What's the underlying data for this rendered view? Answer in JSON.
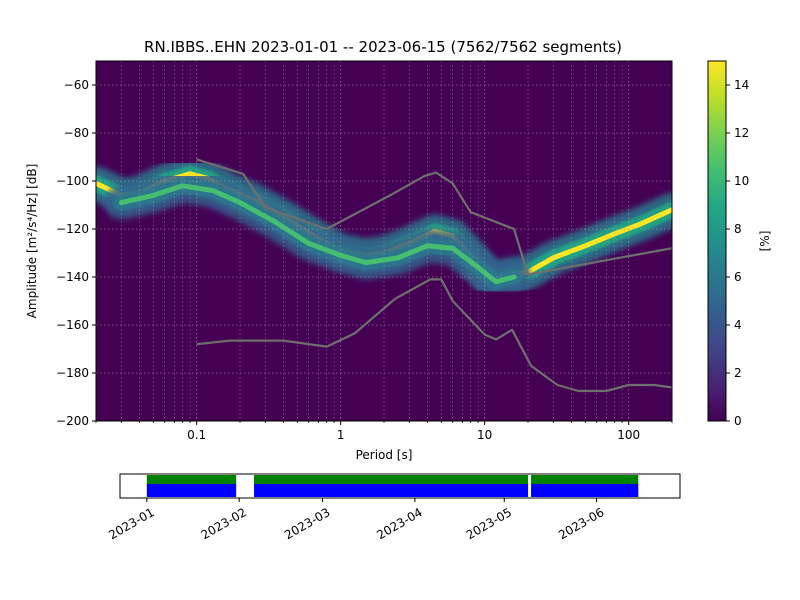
{
  "chart_data": {
    "type": "heatmap",
    "title": "RN.IBBS..EHN   2023-01-01 -- 2023-06-15  (7562/7562 segments)",
    "xlabel": "Period [s]",
    "ylabel": "Amplitude [m²/s⁴/Hz] [dB]",
    "x_scale": "log",
    "xlim": [
      0.02,
      200
    ],
    "ylim": [
      -200,
      -50
    ],
    "x_ticks": [
      {
        "value": 0.1,
        "label": "0.1"
      },
      {
        "value": 1,
        "label": "1"
      },
      {
        "value": 10,
        "label": "10"
      },
      {
        "value": 100,
        "label": "100"
      }
    ],
    "y_ticks": [
      {
        "value": -60,
        "label": "−60"
      },
      {
        "value": -80,
        "label": "−80"
      },
      {
        "value": -100,
        "label": "−100"
      },
      {
        "value": -120,
        "label": "−120"
      },
      {
        "value": -140,
        "label": "−140"
      },
      {
        "value": -160,
        "label": "−160"
      },
      {
        "value": -180,
        "label": "−180"
      },
      {
        "value": -200,
        "label": "−200"
      }
    ],
    "grid": true,
    "colormap": "viridis",
    "colorbar": {
      "label": "[%]",
      "range": [
        0,
        15
      ],
      "ticks": [
        {
          "value": 0,
          "label": "0"
        },
        {
          "value": 2,
          "label": "2"
        },
        {
          "value": 4,
          "label": "4"
        },
        {
          "value": 6,
          "label": "6"
        },
        {
          "value": 8,
          "label": "8"
        },
        {
          "value": 10,
          "label": "10"
        },
        {
          "value": 12,
          "label": "12"
        },
        {
          "value": 14,
          "label": "14"
        }
      ]
    },
    "density_ridges": [
      {
        "peak": 15,
        "points": [
          [
            0.02,
            -101
          ],
          [
            0.03,
            -106
          ],
          [
            0.04,
            -105
          ],
          [
            0.06,
            -100
          ],
          [
            0.09,
            -97
          ],
          [
            0.12,
            -99
          ],
          [
            0.16,
            -103
          ],
          [
            0.25,
            -108
          ],
          [
            0.4,
            -115
          ],
          [
            0.7,
            -124
          ],
          [
            1,
            -129
          ],
          [
            1.5,
            -131
          ],
          [
            2,
            -130
          ],
          [
            3,
            -126
          ],
          [
            4.5,
            -121
          ],
          [
            6,
            -123
          ],
          [
            8,
            -131
          ],
          [
            11,
            -141
          ],
          [
            15,
            -139
          ],
          [
            20,
            -138
          ],
          [
            30,
            -132
          ],
          [
            50,
            -127
          ],
          [
            80,
            -122
          ],
          [
            120,
            -118
          ],
          [
            200,
            -112
          ]
        ]
      },
      {
        "peak": 11,
        "points": [
          [
            0.03,
            -109
          ],
          [
            0.05,
            -106
          ],
          [
            0.08,
            -102
          ],
          [
            0.13,
            -104
          ],
          [
            0.2,
            -109
          ],
          [
            0.35,
            -117
          ],
          [
            0.6,
            -126
          ],
          [
            1,
            -131
          ],
          [
            1.5,
            -134
          ],
          [
            2.5,
            -132
          ],
          [
            4,
            -127
          ],
          [
            6,
            -128
          ],
          [
            9,
            -136
          ],
          [
            12,
            -142
          ],
          [
            16,
            -140
          ]
        ]
      }
    ],
    "model_curves": [
      {
        "points": [
          [
            0.1,
            -91
          ],
          [
            0.21,
            -97
          ],
          [
            0.3,
            -111
          ],
          [
            0.8,
            -120
          ],
          [
            2.2,
            -106
          ],
          [
            3.8,
            -98
          ],
          [
            4.6,
            -96.5
          ],
          [
            6,
            -101
          ],
          [
            8,
            -113
          ],
          [
            16,
            -120
          ],
          [
            20,
            -139
          ],
          [
            200,
            -128
          ]
        ]
      },
      {
        "points": [
          [
            0.1,
            -168
          ],
          [
            0.17,
            -166.5
          ],
          [
            0.4,
            -166.5
          ],
          [
            0.8,
            -169
          ],
          [
            1.25,
            -163.5
          ],
          [
            2.4,
            -149
          ],
          [
            4.2,
            -141
          ],
          [
            5,
            -141
          ],
          [
            6,
            -150
          ],
          [
            10,
            -164
          ],
          [
            12,
            -166
          ],
          [
            15.5,
            -162
          ],
          [
            21,
            -177
          ],
          [
            32,
            -185
          ],
          [
            45,
            -187.5
          ],
          [
            70,
            -187.5
          ],
          [
            100,
            -185
          ],
          [
            150,
            -185
          ],
          [
            200,
            -186
          ]
        ]
      }
    ],
    "timeline": {
      "date_ticks": [
        "2023-01",
        "2023-02",
        "2023-03",
        "2023-04",
        "2023-05",
        "2023-06"
      ],
      "range": [
        "2022-12-23",
        "2023-06-29"
      ],
      "coverage": [
        {
          "start": "2023-01-01",
          "end": "2023-01-31"
        },
        {
          "start": "2023-02-06",
          "end": "2023-05-09"
        },
        {
          "start": "2023-05-10",
          "end": "2023-06-15"
        }
      ],
      "colors": {
        "top": "#008000",
        "bottom": "#0000ff"
      }
    }
  }
}
